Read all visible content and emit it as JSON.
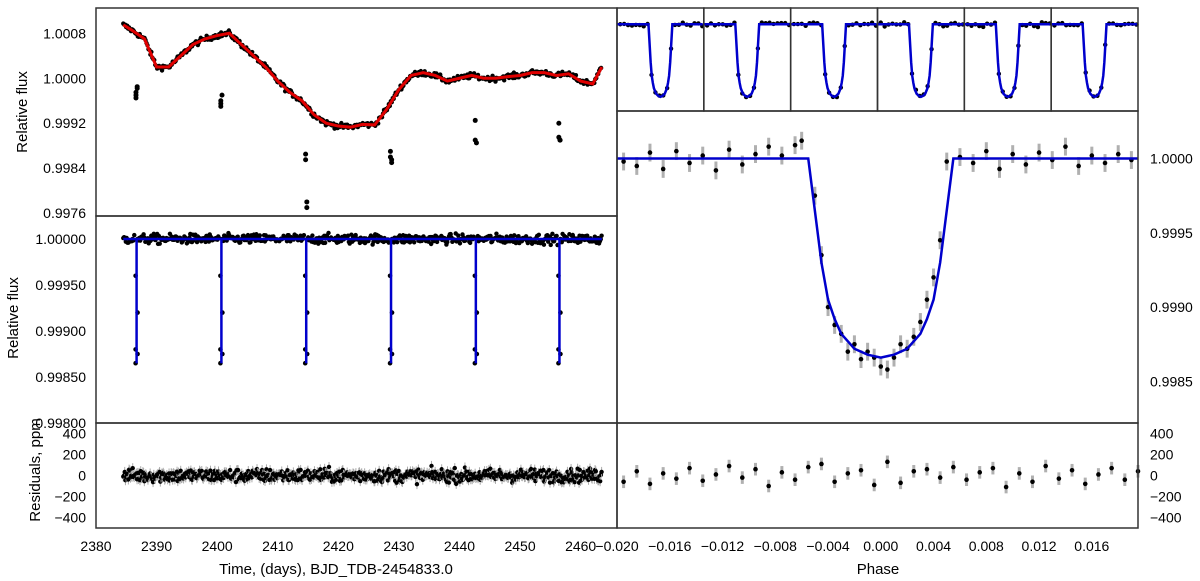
{
  "chart_data": [
    {
      "panel": "left-top",
      "type": "scatter",
      "xlim": [
        2380,
        2466
      ],
      "ylim": [
        0.99755,
        1.00125
      ],
      "ylabel": "Relative flux",
      "yticks": [
        "1.0008",
        "1.0000",
        "0.9992",
        "0.9984",
        "0.9976"
      ],
      "ytick_values": [
        1.0008,
        1.0,
        0.9992,
        0.9984,
        0.9976
      ],
      "colors": {
        "data": "#000000",
        "model": "#e00000"
      },
      "series": [
        {
          "role": "model",
          "x": [
            2384.5,
            2386,
            2388,
            2390,
            2392,
            2394,
            2396,
            2398,
            2400,
            2402,
            2404,
            2406,
            2408,
            2410,
            2412,
            2414,
            2416,
            2418,
            2420,
            2422,
            2424,
            2426,
            2428,
            2430,
            2432,
            2434,
            2436,
            2438,
            2440,
            2442,
            2444,
            2446,
            2448,
            2450,
            2452,
            2454,
            2456,
            2458,
            2460,
            2462,
            2463.5
          ],
          "y": [
            1.00095,
            1.00085,
            1.0007,
            1.0002,
            1.0002,
            1.0004,
            1.0006,
            1.0007,
            1.00076,
            1.0008,
            1.0006,
            1.0004,
            1.0002,
            0.99995,
            0.99975,
            0.9996,
            0.99935,
            0.9992,
            0.99915,
            0.99913,
            0.99918,
            0.99917,
            0.99945,
            0.9998,
            1.00005,
            1.0001,
            1.00005,
            0.99995,
            1.0,
            1.00005,
            1.0,
            1.0,
            1.00003,
            1.00005,
            1.0001,
            1.0001,
            1.00005,
            1.00008,
            0.99995,
            0.9999,
            1.0002
          ]
        },
        {
          "role": "in-transit points",
          "x": [
            2386.6,
            2386.6,
            2386.6,
            2386.8,
            2386.8,
            2400.6,
            2400.6,
            2400.6,
            2400.8,
            2414.6,
            2414.6,
            2414.8,
            2414.8,
            2428.6,
            2428.6,
            2428.8,
            2428.8,
            2442.6,
            2442.6,
            2442.8,
            2456.4,
            2456.4,
            2456.6,
            2456.6
          ],
          "y": [
            0.99975,
            0.9997,
            0.99965,
            0.99982,
            0.99985,
            0.9996,
            0.99955,
            0.9995,
            0.9997,
            0.99865,
            0.99855,
            0.9978,
            0.9977,
            0.9987,
            0.9986,
            0.99855,
            0.9985,
            0.99925,
            0.9989,
            0.99885,
            0.9992,
            0.99895,
            0.9989,
            0.9989
          ]
        }
      ]
    },
    {
      "panel": "left-middle",
      "type": "line",
      "xlim": [
        2380,
        2466
      ],
      "ylim": [
        0.998,
        1.00025
      ],
      "ylabel": "Relative flux",
      "yticks": [
        "1.00000",
        "0.99950",
        "0.99900",
        "0.99850",
        "0.99800"
      ],
      "ytick_values": [
        1.0,
        0.9995,
        0.999,
        0.9985,
        0.998
      ],
      "colors": {
        "data": "#000000",
        "model": "#0000cc"
      },
      "baseline": 1.0,
      "transit_times": [
        2386.7,
        2400.7,
        2414.7,
        2428.7,
        2442.7,
        2456.5
      ],
      "transit_depth": 0.99865,
      "out_of_transit_scatter": 5e-05
    },
    {
      "panel": "left-bottom",
      "type": "scatter",
      "xlim": [
        2380,
        2466
      ],
      "ylim": [
        -500,
        500
      ],
      "ylabel": "Residuals, ppm",
      "xlabel": "Time, (days), BJD_TDB-2454833.0",
      "yticks": [
        "400",
        "200",
        "0",
        "−200",
        "−400"
      ],
      "ytick_values": [
        400,
        200,
        0,
        -200,
        -400
      ],
      "xticks": [
        "2380",
        "2390",
        "2400",
        "2410",
        "2420",
        "2430",
        "2440",
        "2450",
        "2460"
      ],
      "xtick_values": [
        2380,
        2390,
        2400,
        2410,
        2420,
        2430,
        2440,
        2450,
        2460
      ],
      "data_xrange": [
        2384.5,
        2463.5
      ],
      "scatter_ppm": 60
    },
    {
      "panel": "right-top",
      "type": "line",
      "note_panels": 6,
      "ylim": [
        0.9984,
        1.0003
      ],
      "xlim": [
        -0.02,
        0.02
      ],
      "colors": {
        "data": "#000000",
        "model": "#0000cc"
      }
    },
    {
      "panel": "right-middle",
      "type": "line",
      "xlim": [
        -0.02,
        0.0195
      ],
      "ylim": [
        0.99822,
        1.00032
      ],
      "yticks": [
        "1.0000",
        "0.9995",
        "0.9990",
        "0.9985"
      ],
      "ytick_values": [
        1.0,
        0.9995,
        0.999,
        0.9985
      ],
      "colors": {
        "data": "#000000",
        "model": "#0000cc",
        "errorbar": "#b0b0b0"
      },
      "model": {
        "x": [
          -0.02,
          -0.0055,
          -0.0045,
          -0.004,
          -0.0035,
          -0.003,
          -0.002,
          -0.001,
          0.0,
          0.001,
          0.002,
          0.003,
          0.0035,
          0.004,
          0.0045,
          0.0055,
          0.0195
        ],
        "y": [
          1.0,
          1.0,
          0.9993,
          0.99905,
          0.99892,
          0.99882,
          0.99872,
          0.99868,
          0.99866,
          0.99868,
          0.99872,
          0.99882,
          0.99892,
          0.99905,
          0.9993,
          1.0,
          1.0
        ]
      },
      "points": {
        "x": [
          -0.0195,
          -0.0185,
          -0.0175,
          -0.0165,
          -0.0155,
          -0.0145,
          -0.0135,
          -0.0125,
          -0.0115,
          -0.0105,
          -0.0095,
          -0.0085,
          -0.0075,
          -0.0065,
          -0.006,
          -0.005,
          -0.0045,
          -0.004,
          -0.0035,
          -0.003,
          -0.0025,
          -0.002,
          -0.0015,
          -0.001,
          -0.0005,
          0.0,
          0.0005,
          0.001,
          0.0015,
          0.002,
          0.0025,
          0.003,
          0.0035,
          0.004,
          0.0045,
          0.005,
          0.006,
          0.007,
          0.008,
          0.009,
          0.01,
          0.011,
          0.012,
          0.013,
          0.014,
          0.015,
          0.016,
          0.017,
          0.018,
          0.019
        ],
        "y": [
          0.99998,
          0.99995,
          1.00004,
          0.99993,
          1.00005,
          0.99997,
          1.00002,
          0.99992,
          1.00006,
          0.99996,
          1.00003,
          1.00008,
          1.00002,
          1.00009,
          1.00012,
          0.99975,
          0.99935,
          0.999,
          0.99888,
          0.99882,
          0.9987,
          0.99875,
          0.99865,
          0.9987,
          0.99866,
          0.9986,
          0.99858,
          0.99866,
          0.99875,
          0.99872,
          0.9988,
          0.9989,
          0.99905,
          0.9992,
          0.99945,
          0.99998,
          1.00001,
          0.99997,
          1.00005,
          0.99993,
          1.00003,
          0.99996,
          1.00004,
          0.99999,
          1.00008,
          0.99995,
          1.00002,
          0.99997,
          1.00003,
          0.99999
        ]
      },
      "errorbar": 6e-05
    },
    {
      "panel": "right-bottom",
      "type": "scatter",
      "xlim": [
        -0.02,
        0.0195
      ],
      "ylim": [
        -500,
        500
      ],
      "xlabel": "Phase",
      "yticks": [
        "400",
        "200",
        "0",
        "−200",
        "−400"
      ],
      "ytick_values": [
        400,
        200,
        0,
        -200,
        -400
      ],
      "xticks": [
        "−0.020",
        "−0.016",
        "−0.012",
        "−0.008",
        "−0.004",
        "0.000",
        "0.004",
        "0.008",
        "0.012",
        "0.016"
      ],
      "xtick_values": [
        -0.02,
        -0.016,
        -0.012,
        -0.008,
        -0.004,
        0.0,
        0.004,
        0.008,
        0.012,
        0.016
      ],
      "points": {
        "x": [
          -0.0195,
          -0.0185,
          -0.0175,
          -0.0165,
          -0.0155,
          -0.0145,
          -0.0135,
          -0.0125,
          -0.0115,
          -0.0105,
          -0.0095,
          -0.0085,
          -0.0075,
          -0.0065,
          -0.0055,
          -0.0045,
          -0.0035,
          -0.0025,
          -0.0015,
          -0.0005,
          0.0005,
          0.0015,
          0.0025,
          0.0035,
          0.0045,
          0.0055,
          0.0065,
          0.0075,
          0.0085,
          0.0095,
          0.0105,
          0.0115,
          0.0125,
          0.0135,
          0.0145,
          0.0155,
          0.0165,
          0.0175,
          0.0185,
          0.0195
        ],
        "y": [
          -60,
          40,
          -80,
          20,
          -30,
          70,
          -50,
          10,
          90,
          -20,
          60,
          -100,
          30,
          -40,
          80,
          110,
          -60,
          20,
          50,
          -90,
          130,
          -70,
          40,
          60,
          -20,
          80,
          -40,
          30,
          70,
          -110,
          20,
          -60,
          90,
          -30,
          50,
          -80,
          10,
          70,
          -40,
          40
        ]
      },
      "errorbar": 60
    }
  ]
}
